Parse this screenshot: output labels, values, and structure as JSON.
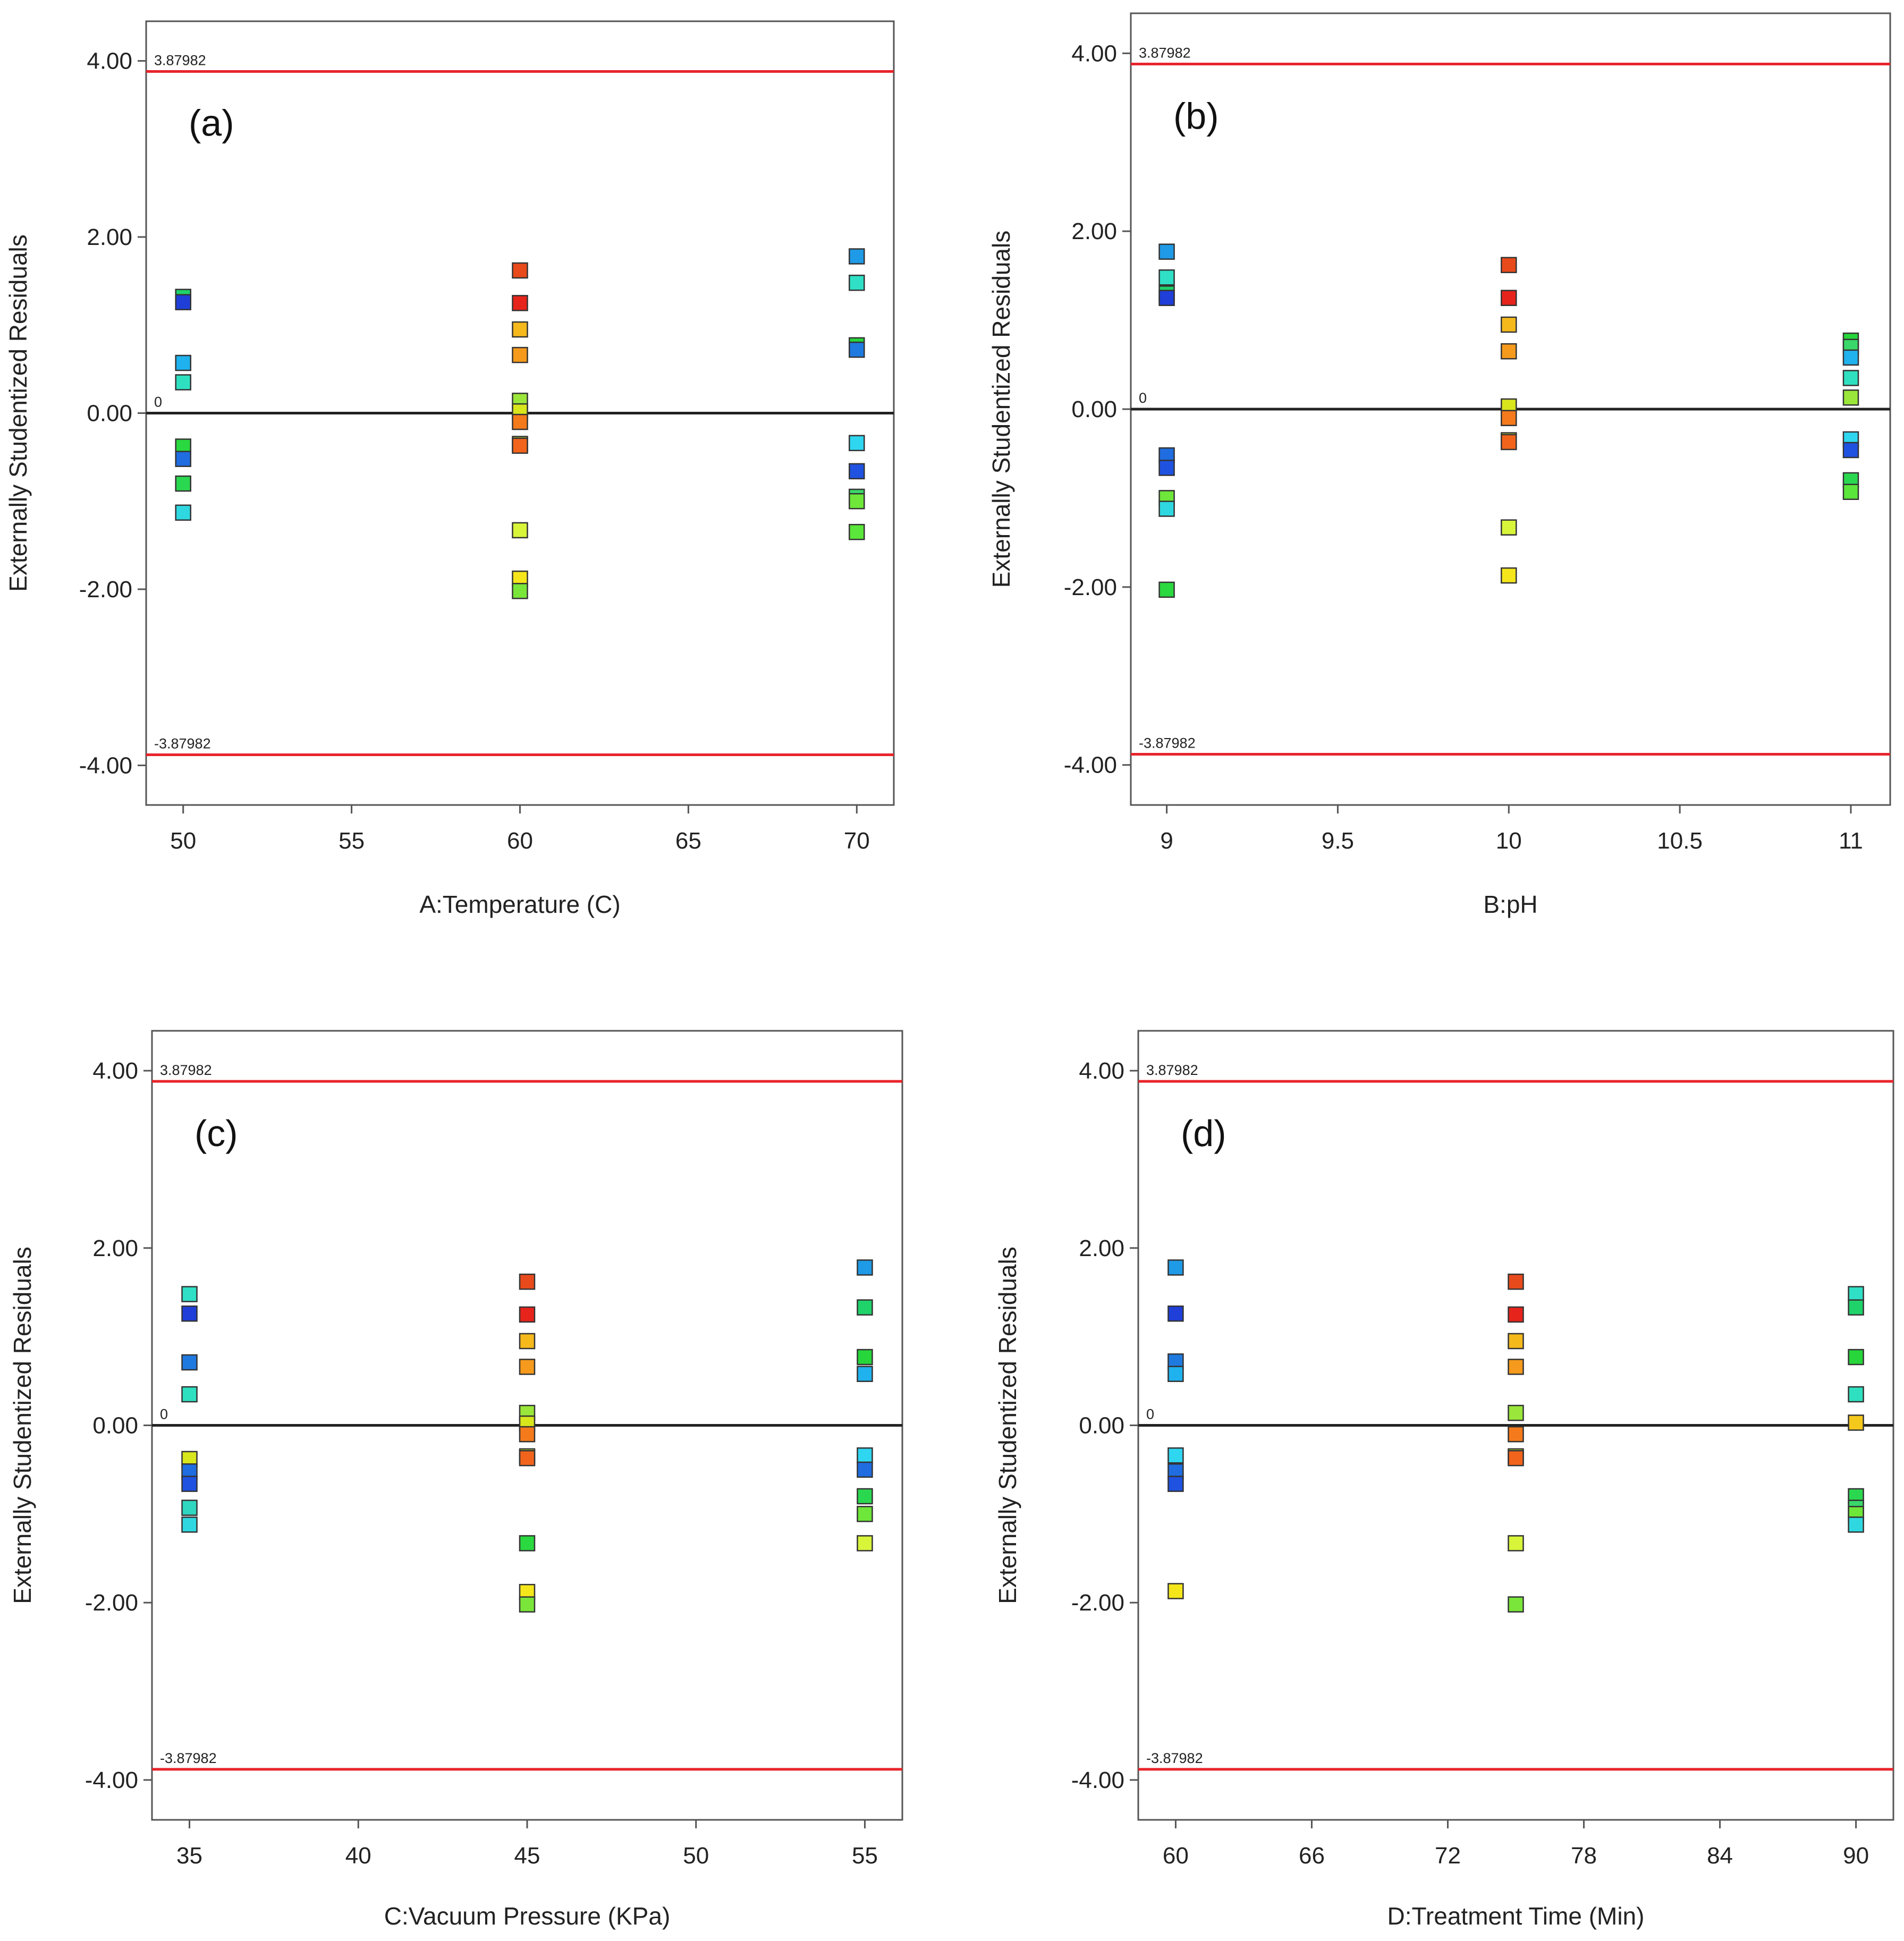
{
  "colors": {
    "limit_line": "#e8242b",
    "zero_line": "#222222",
    "frame": "#555555",
    "marker_edge": "#333333"
  },
  "chart_data": [
    {
      "type": "scatter",
      "panel_label": "(a)",
      "xlabel": "A:Temperature (C)",
      "ylabel": "Externally Studentized Residuals",
      "xlim": [
        48.9,
        71.1
      ],
      "ylim": [
        -4.45,
        4.45
      ],
      "xticks": [
        50,
        55,
        60,
        65,
        70
      ],
      "xtick_labels": [
        "50",
        "55",
        "60",
        "65",
        "70"
      ],
      "yticks": [
        4,
        2,
        0,
        -2,
        -4
      ],
      "ytick_labels": [
        "4.00",
        "2.00",
        "0.00",
        "-2.00",
        "-4.00"
      ],
      "upper_limit": 3.87982,
      "upper_limit_label": "3.87982",
      "lower_limit": -3.87982,
      "lower_limit_label": "-3.87982",
      "zero_label": "0",
      "points": [
        {
          "x": 50,
          "y": 1.32,
          "color": "#1fd36a"
        },
        {
          "x": 50,
          "y": 1.26,
          "color": "#1f3fd8"
        },
        {
          "x": 50,
          "y": 0.57,
          "color": "#1fb2ee"
        },
        {
          "x": 50,
          "y": 0.35,
          "color": "#2fe0c0"
        },
        {
          "x": 50,
          "y": -0.38,
          "color": "#2ad840"
        },
        {
          "x": 50,
          "y": -0.52,
          "color": "#1f6de0"
        },
        {
          "x": 50,
          "y": -0.8,
          "color": "#2ad850"
        },
        {
          "x": 50,
          "y": -1.13,
          "color": "#2fd8e0"
        },
        {
          "x": 60,
          "y": 1.62,
          "color": "#e84a1c"
        },
        {
          "x": 60,
          "y": 1.25,
          "color": "#e6241c"
        },
        {
          "x": 60,
          "y": 0.95,
          "color": "#f5b91c"
        },
        {
          "x": 60,
          "y": 0.66,
          "color": "#f59a1c"
        },
        {
          "x": 60,
          "y": 0.14,
          "color": "#9ae63a"
        },
        {
          "x": 60,
          "y": 0.02,
          "color": "#d8e61c"
        },
        {
          "x": 60,
          "y": -0.1,
          "color": "#f57a1c"
        },
        {
          "x": 60,
          "y": -0.35,
          "color": "#bce63a"
        },
        {
          "x": 60,
          "y": -0.37,
          "color": "#f2641c"
        },
        {
          "x": 60,
          "y": -1.33,
          "color": "#d8f53a"
        },
        {
          "x": 60,
          "y": -1.88,
          "color": "#f5e61c"
        },
        {
          "x": 60,
          "y": -2.02,
          "color": "#7ae63a"
        },
        {
          "x": 70,
          "y": 1.78,
          "color": "#1f9ae6"
        },
        {
          "x": 70,
          "y": 1.48,
          "color": "#2fe0c6"
        },
        {
          "x": 70,
          "y": 0.77,
          "color": "#26d63a"
        },
        {
          "x": 70,
          "y": 0.72,
          "color": "#1f7ae0"
        },
        {
          "x": 70,
          "y": -0.34,
          "color": "#2fd6f0"
        },
        {
          "x": 70,
          "y": -0.66,
          "color": "#1f52e0"
        },
        {
          "x": 70,
          "y": -0.95,
          "color": "#3ad86a"
        },
        {
          "x": 70,
          "y": -1.0,
          "color": "#6ee63a"
        },
        {
          "x": 70,
          "y": -1.35,
          "color": "#5ae63a"
        }
      ]
    },
    {
      "type": "scatter",
      "panel_label": "(b)",
      "xlabel": "B:pH",
      "ylabel": "Externally Studentized Residuals",
      "xlim": [
        8.895,
        11.115
      ],
      "ylim": [
        -4.45,
        4.45
      ],
      "xticks": [
        9,
        9.5,
        10,
        10.5,
        11
      ],
      "xtick_labels": [
        "9",
        "9.5",
        "10",
        "10.5",
        "11"
      ],
      "yticks": [
        4,
        2,
        0,
        -2,
        -4
      ],
      "ytick_labels": [
        "4.00",
        "2.00",
        "0.00",
        "-2.00",
        "-4.00"
      ],
      "upper_limit": 3.87982,
      "upper_limit_label": "3.87982",
      "lower_limit": -3.87982,
      "lower_limit_label": "-3.87982",
      "zero_label": "0",
      "points": [
        {
          "x": 9,
          "y": 1.77,
          "color": "#1f9ae6"
        },
        {
          "x": 9,
          "y": 1.48,
          "color": "#2fe0c6"
        },
        {
          "x": 9,
          "y": 1.3,
          "color": "#1fd36a"
        },
        {
          "x": 9,
          "y": 1.25,
          "color": "#1f3fd8"
        },
        {
          "x": 9,
          "y": -0.52,
          "color": "#1f6de0"
        },
        {
          "x": 9,
          "y": -0.66,
          "color": "#1f52e0"
        },
        {
          "x": 9,
          "y": -1.0,
          "color": "#6ee63a"
        },
        {
          "x": 9,
          "y": -1.12,
          "color": "#2fd8e0"
        },
        {
          "x": 9,
          "y": -2.03,
          "color": "#2ad840"
        },
        {
          "x": 10,
          "y": 1.62,
          "color": "#e84a1c"
        },
        {
          "x": 10,
          "y": 1.25,
          "color": "#e6241c"
        },
        {
          "x": 10,
          "y": 0.95,
          "color": "#f5b91c"
        },
        {
          "x": 10,
          "y": 0.65,
          "color": "#f59a1c"
        },
        {
          "x": 10,
          "y": 0.03,
          "color": "#d8e61c"
        },
        {
          "x": 10,
          "y": -0.1,
          "color": "#f57a1c"
        },
        {
          "x": 10,
          "y": -0.35,
          "color": "#bce63a"
        },
        {
          "x": 10,
          "y": -0.37,
          "color": "#f2641c"
        },
        {
          "x": 10,
          "y": -1.33,
          "color": "#d8f53a"
        },
        {
          "x": 10,
          "y": -1.87,
          "color": "#f5e61c"
        },
        {
          "x": 11,
          "y": 0.77,
          "color": "#26d63a"
        },
        {
          "x": 11,
          "y": 0.7,
          "color": "#3ad86a"
        },
        {
          "x": 11,
          "y": 0.58,
          "color": "#1fb2ee"
        },
        {
          "x": 11,
          "y": 0.35,
          "color": "#2fe0c0"
        },
        {
          "x": 11,
          "y": 0.13,
          "color": "#9ae63a"
        },
        {
          "x": 11,
          "y": -0.34,
          "color": "#2fd6f0"
        },
        {
          "x": 11,
          "y": -0.46,
          "color": "#1f52e0"
        },
        {
          "x": 11,
          "y": -0.8,
          "color": "#2ad850"
        },
        {
          "x": 11,
          "y": -0.93,
          "color": "#5ae63a"
        }
      ]
    },
    {
      "type": "scatter",
      "panel_label": "(c)",
      "xlabel": "C:Vacuum Pressure (KPa)",
      "ylabel": "Externally Studentized Residuals",
      "xlim": [
        33.89,
        56.11
      ],
      "ylim": [
        -4.45,
        4.45
      ],
      "xticks": [
        35,
        40,
        45,
        50,
        55
      ],
      "xtick_labels": [
        "35",
        "40",
        "45",
        "50",
        "55"
      ],
      "yticks": [
        4,
        2,
        0,
        -2,
        -4
      ],
      "ytick_labels": [
        "4.00",
        "2.00",
        "0.00",
        "-2.00",
        "-4.00"
      ],
      "upper_limit": 3.87982,
      "upper_limit_label": "3.87982",
      "lower_limit": -3.87982,
      "lower_limit_label": "-3.87982",
      "zero_label": "0",
      "points": [
        {
          "x": 35,
          "y": 1.48,
          "color": "#2fe0c6"
        },
        {
          "x": 35,
          "y": 1.26,
          "color": "#1f3fd8"
        },
        {
          "x": 35,
          "y": 0.71,
          "color": "#1f7ae0"
        },
        {
          "x": 35,
          "y": 0.35,
          "color": "#2fe0c0"
        },
        {
          "x": 35,
          "y": -0.38,
          "color": "#d8e61c"
        },
        {
          "x": 35,
          "y": -0.52,
          "color": "#1f6de0"
        },
        {
          "x": 35,
          "y": -0.66,
          "color": "#1f52e0"
        },
        {
          "x": 35,
          "y": -0.93,
          "color": "#2fd6c0"
        },
        {
          "x": 35,
          "y": -1.12,
          "color": "#2fd8e0"
        },
        {
          "x": 45,
          "y": 1.62,
          "color": "#e84a1c"
        },
        {
          "x": 45,
          "y": 1.25,
          "color": "#e6241c"
        },
        {
          "x": 45,
          "y": 0.95,
          "color": "#f5b91c"
        },
        {
          "x": 45,
          "y": 0.66,
          "color": "#f59a1c"
        },
        {
          "x": 45,
          "y": 0.14,
          "color": "#9ae63a"
        },
        {
          "x": 45,
          "y": 0.02,
          "color": "#d8e61c"
        },
        {
          "x": 45,
          "y": -0.1,
          "color": "#f57a1c"
        },
        {
          "x": 45,
          "y": -0.35,
          "color": "#bce63a"
        },
        {
          "x": 45,
          "y": -0.37,
          "color": "#f2641c"
        },
        {
          "x": 45,
          "y": -1.33,
          "color": "#2ad840"
        },
        {
          "x": 45,
          "y": -1.88,
          "color": "#f5e61c"
        },
        {
          "x": 45,
          "y": -2.02,
          "color": "#7ae63a"
        },
        {
          "x": 55,
          "y": 1.78,
          "color": "#1f9ae6"
        },
        {
          "x": 55,
          "y": 1.33,
          "color": "#1fd36a"
        },
        {
          "x": 55,
          "y": 0.77,
          "color": "#26d63a"
        },
        {
          "x": 55,
          "y": 0.58,
          "color": "#1fb2ee"
        },
        {
          "x": 55,
          "y": -0.34,
          "color": "#2fd6f0"
        },
        {
          "x": 55,
          "y": -0.5,
          "color": "#1f6de0"
        },
        {
          "x": 55,
          "y": -0.8,
          "color": "#2ad850"
        },
        {
          "x": 55,
          "y": -1.0,
          "color": "#6ee63a"
        },
        {
          "x": 55,
          "y": -1.33,
          "color": "#d8f53a"
        }
      ]
    },
    {
      "type": "scatter",
      "panel_label": "(d)",
      "xlabel": "D:Treatment Time (Min)",
      "ylabel": "Externally Studentized Residuals",
      "xlim": [
        58.35,
        91.65
      ],
      "ylim": [
        -4.45,
        4.45
      ],
      "xticks": [
        60,
        66,
        72,
        78,
        84,
        90
      ],
      "xtick_labels": [
        "60",
        "66",
        "72",
        "78",
        "84",
        "90"
      ],
      "yticks": [
        4,
        2,
        0,
        -2,
        -4
      ],
      "ytick_labels": [
        "4.00",
        "2.00",
        "0.00",
        "-2.00",
        "-4.00"
      ],
      "upper_limit": 3.87982,
      "upper_limit_label": "3.87982",
      "lower_limit": -3.87982,
      "lower_limit_label": "-3.87982",
      "zero_label": "0",
      "points": [
        {
          "x": 60,
          "y": 1.78,
          "color": "#1f9ae6"
        },
        {
          "x": 60,
          "y": 1.26,
          "color": "#1f3fd8"
        },
        {
          "x": 60,
          "y": 0.72,
          "color": "#1f7ae0"
        },
        {
          "x": 60,
          "y": 0.58,
          "color": "#1fb2ee"
        },
        {
          "x": 60,
          "y": -0.34,
          "color": "#2fd6f0"
        },
        {
          "x": 60,
          "y": -0.52,
          "color": "#1f6de0"
        },
        {
          "x": 60,
          "y": -0.66,
          "color": "#1f52e0"
        },
        {
          "x": 60,
          "y": -1.87,
          "color": "#f5e61c"
        },
        {
          "x": 75,
          "y": 1.62,
          "color": "#e84a1c"
        },
        {
          "x": 75,
          "y": 1.25,
          "color": "#e6241c"
        },
        {
          "x": 75,
          "y": 0.95,
          "color": "#f5b91c"
        },
        {
          "x": 75,
          "y": 0.66,
          "color": "#f59a1c"
        },
        {
          "x": 75,
          "y": 0.14,
          "color": "#9ae63a"
        },
        {
          "x": 75,
          "y": -0.1,
          "color": "#f57a1c"
        },
        {
          "x": 75,
          "y": -0.35,
          "color": "#bce63a"
        },
        {
          "x": 75,
          "y": -0.37,
          "color": "#f2641c"
        },
        {
          "x": 75,
          "y": -1.33,
          "color": "#d8f53a"
        },
        {
          "x": 75,
          "y": -2.02,
          "color": "#7ae63a"
        },
        {
          "x": 90,
          "y": 1.48,
          "color": "#2fe0c6"
        },
        {
          "x": 90,
          "y": 1.33,
          "color": "#1fd36a"
        },
        {
          "x": 90,
          "y": 0.77,
          "color": "#26d63a"
        },
        {
          "x": 90,
          "y": 0.35,
          "color": "#2fe0c0"
        },
        {
          "x": 90,
          "y": 0.03,
          "color": "#f5c81c"
        },
        {
          "x": 90,
          "y": -0.8,
          "color": "#2ad850"
        },
        {
          "x": 90,
          "y": -0.93,
          "color": "#3ad86a"
        },
        {
          "x": 90,
          "y": -1.0,
          "color": "#6ee63a"
        },
        {
          "x": 90,
          "y": -1.12,
          "color": "#2fd8e0"
        }
      ]
    }
  ]
}
